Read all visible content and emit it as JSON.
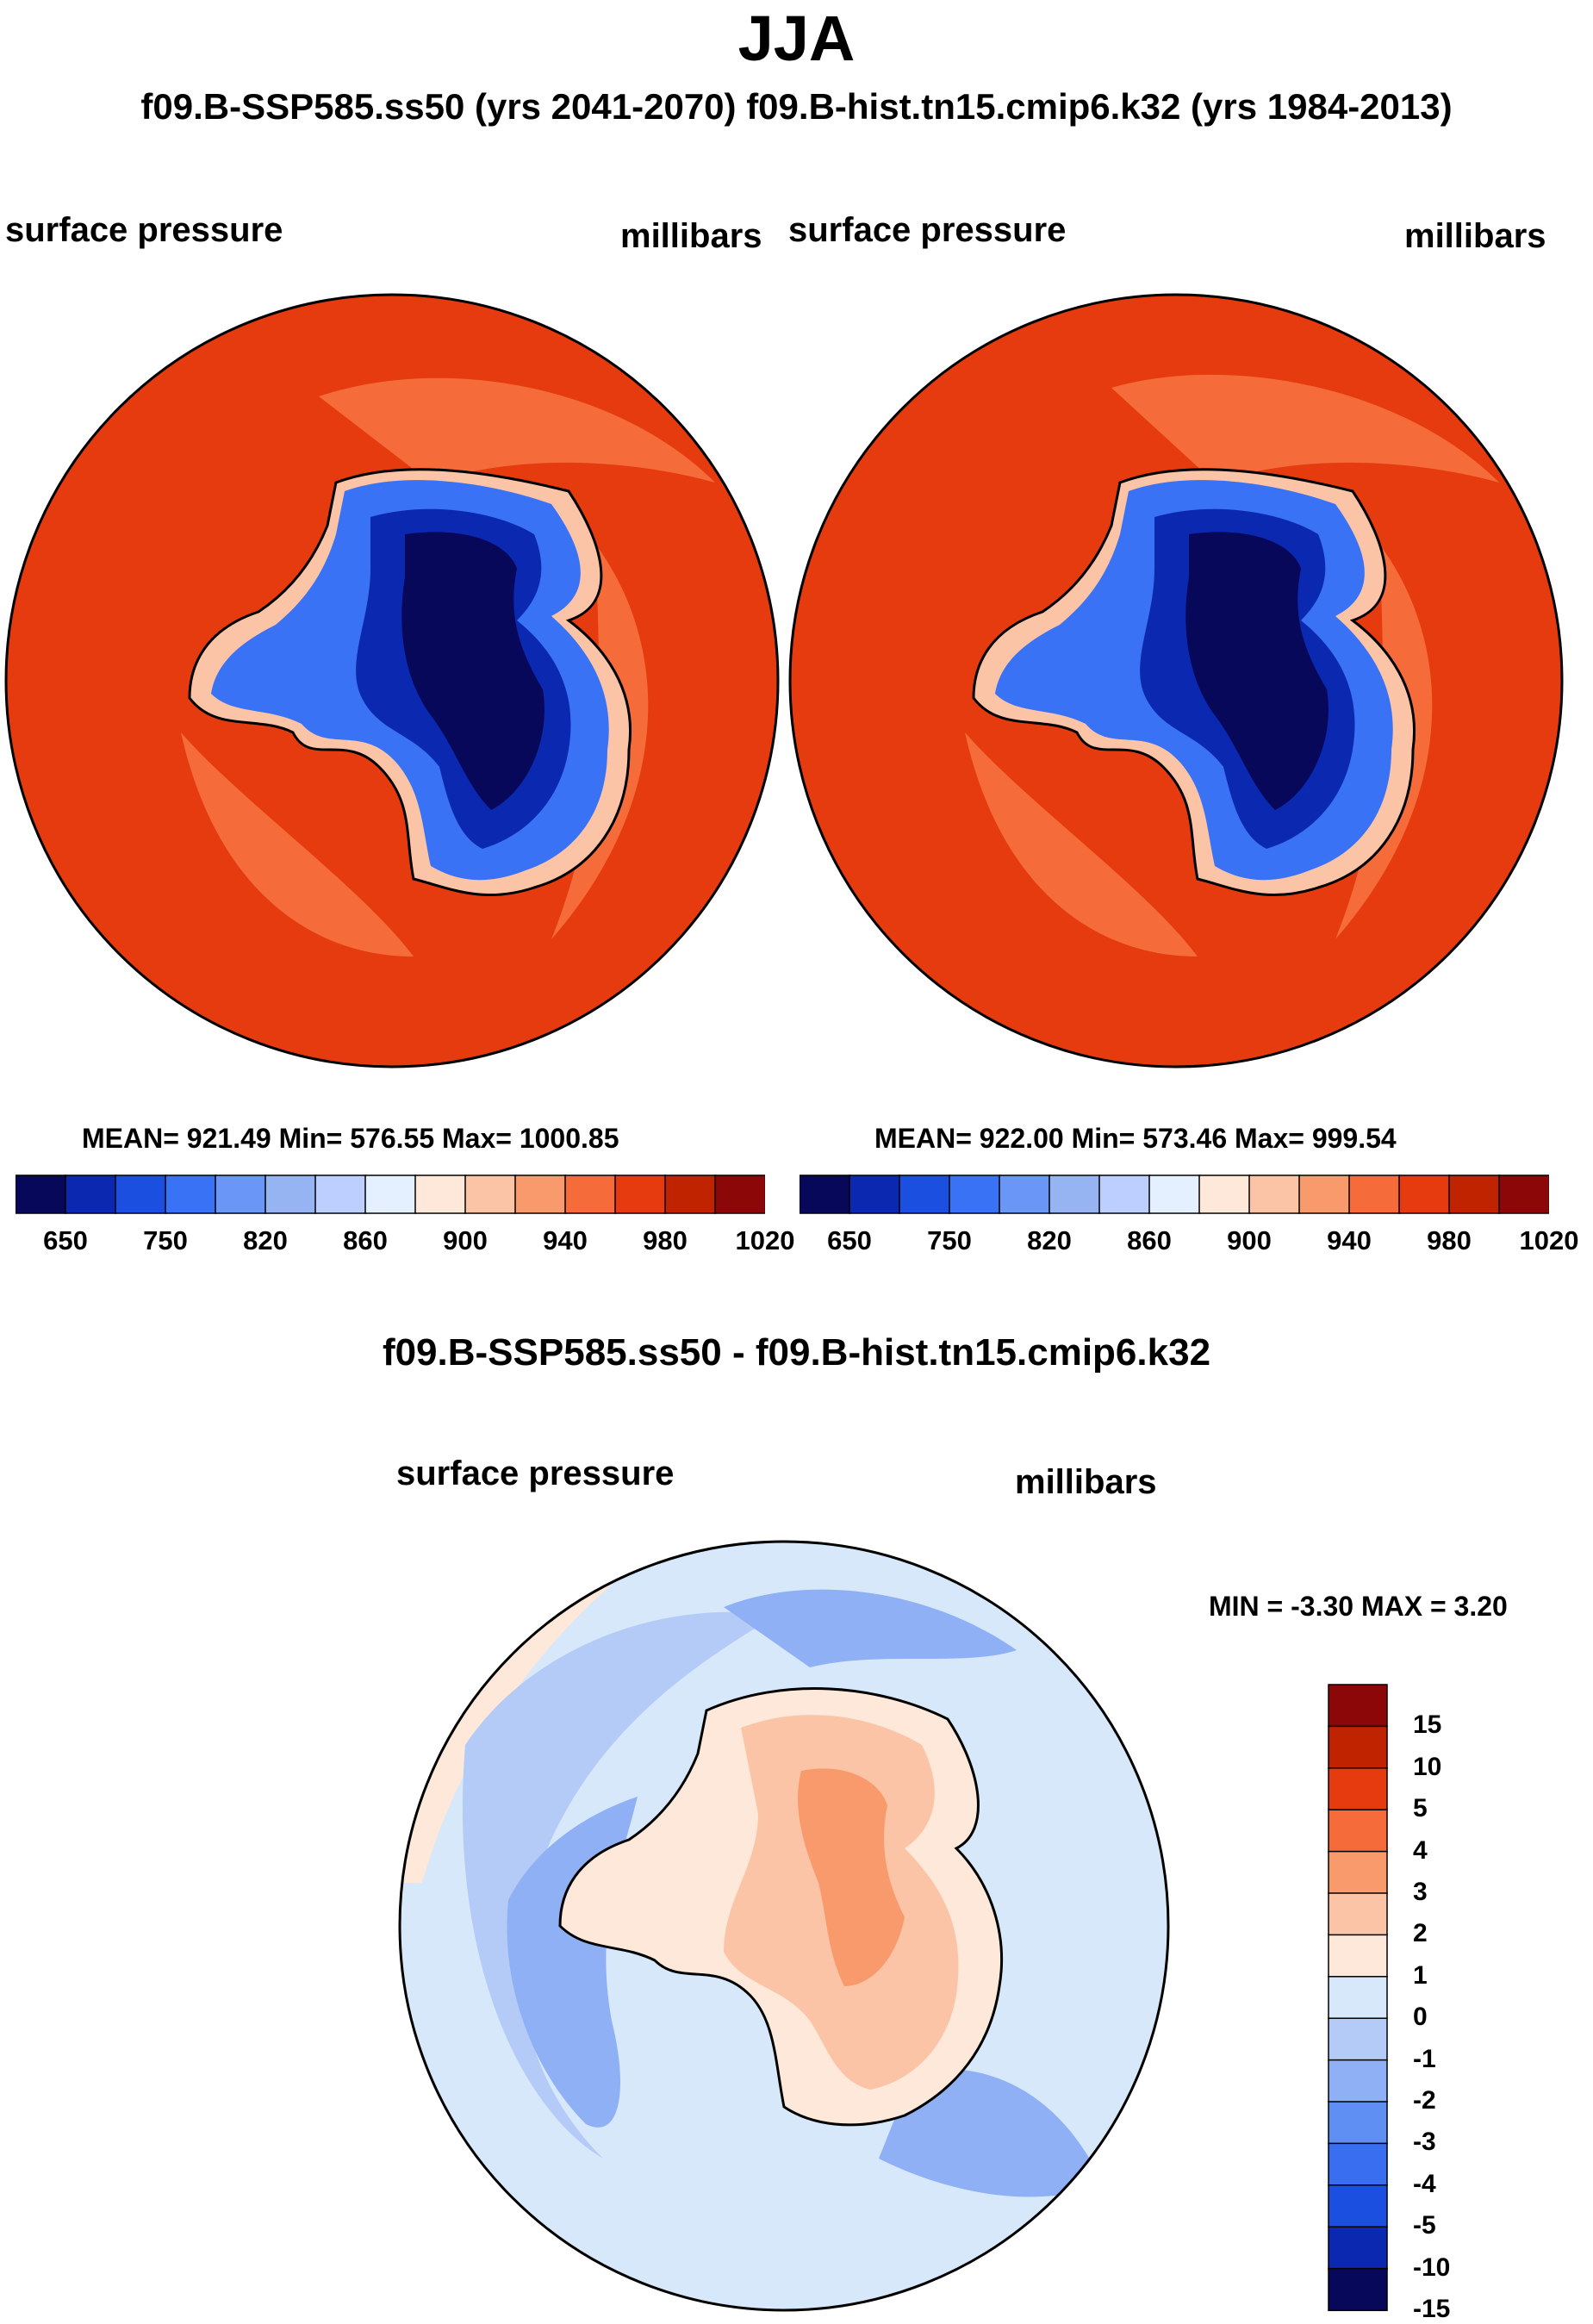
{
  "header": {
    "title": "JJA",
    "subtitle": "f09.B-SSP585.ss50 (yrs 2041-2070)  f09.B-hist.tn15.cmip6.k32 (yrs 1984-2013)"
  },
  "panels": [
    {
      "variable": "surface pressure",
      "units": "millibars",
      "stats": "MEAN= 921.49  Min= 576.55  Max= 1000.85"
    },
    {
      "variable": "surface pressure",
      "units": "millibars",
      "stats": "MEAN= 922.00  Min= 573.46  Max= 999.54"
    }
  ],
  "colorbar_top": {
    "colors": [
      "#08085a",
      "#0b28b0",
      "#1a4fe0",
      "#3a72f5",
      "#6a96f7",
      "#96b4f2",
      "#bccfff",
      "#e4efff",
      "#fde8da",
      "#fbc4a6",
      "#f99a6c",
      "#f56c3a",
      "#e63b0e",
      "#c02300",
      "#8c0808"
    ],
    "tick_labels": [
      "650",
      "750",
      "820",
      "860",
      "900",
      "940",
      "980",
      "1020"
    ]
  },
  "difference": {
    "title": "f09.B-SSP585.ss50 - f09.B-hist.tn15.cmip6.k32",
    "variable": "surface pressure",
    "units": "millibars",
    "minmax": "MIN =  -3.30 MAX =   3.20"
  },
  "colorbar_diff": {
    "colors": [
      "#8c0808",
      "#c02300",
      "#e63b0e",
      "#f56c3a",
      "#f99a6c",
      "#fbc4a6",
      "#fde8da",
      "#d8e8fb",
      "#b4cbf7",
      "#8fb0f5",
      "#5f8ff2",
      "#3a6ef0",
      "#1a4fe0",
      "#0b28b0",
      "#08085a"
    ],
    "tick_labels": [
      "15",
      "10",
      "5",
      "4",
      "3",
      "2",
      "1",
      "0",
      "-1",
      "-2",
      "-3",
      "-4",
      "-5",
      "-10",
      "-15"
    ]
  }
}
